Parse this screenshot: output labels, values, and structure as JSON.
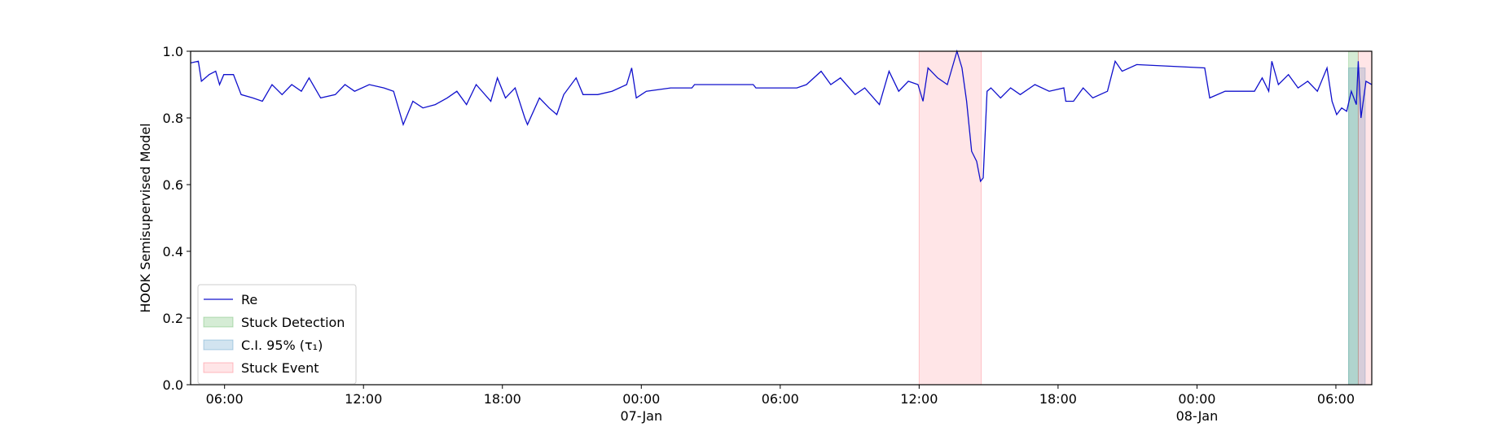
{
  "chart_data": {
    "type": "line",
    "ylabel": "HOOK Semisupervised Model",
    "x": [
      "1900-01-06 04:32",
      "1900-01-06 04:52",
      "1900-01-06 05:00",
      "1900-01-06 05:20",
      "1900-01-06 05:37",
      "1900-01-06 05:47",
      "1900-01-06 05:58",
      "1900-01-06 06:23",
      "1900-01-06 06:43",
      "1900-01-06 07:13",
      "1900-01-06 07:38",
      "1900-01-06 08:03",
      "1900-01-06 08:29",
      "1900-01-06 08:54",
      "1900-01-06 09:19",
      "1900-01-06 09:39",
      "1900-01-06 10:09",
      "1900-01-06 10:47",
      "1900-01-06 11:12",
      "1900-01-06 11:37",
      "1900-01-06 12:15",
      "1900-01-06 12:53",
      "1900-01-06 13:18",
      "1900-01-06 13:43",
      "1900-01-06 14:08",
      "1900-01-06 14:34",
      "1900-01-06 15:06",
      "1900-01-06 15:37",
      "1900-01-06 16:02",
      "1900-01-06 16:27",
      "1900-01-06 16:52",
      "1900-01-06 17:30",
      "1900-01-06 17:47",
      "1900-01-06 18:08",
      "1900-01-06 18:33",
      "1900-01-06 18:58",
      "1900-01-06 19:05",
      "1900-01-06 19:36",
      "1900-01-06 20:01",
      "1900-01-06 20:21",
      "1900-01-06 20:39",
      "1900-01-06 21:11",
      "1900-01-06 21:29",
      "1900-01-06 22:07",
      "1900-01-06 22:44",
      "1900-01-06 23:22",
      "1900-01-06 23:35",
      "1900-01-06 23:47",
      "1900-01-07 00:00",
      "1900-01-07 00:13",
      "1900-01-07 01:16",
      "1900-01-07 02:11",
      "1900-01-07 02:18",
      "1900-01-07 04:50",
      "1900-01-07 04:57",
      "1900-01-07 06:43",
      "1900-01-07 07:08",
      "1900-01-07 07:46",
      "1900-01-07 08:11",
      "1900-01-07 08:36",
      "1900-01-07 09:14",
      "1900-01-07 09:39",
      "1900-01-07 10:17",
      "1900-01-07 10:42",
      "1900-01-07 11:07",
      "1900-01-07 11:32",
      "1900-01-07 11:57",
      "1900-01-07 12:10",
      "1900-01-07 12:23",
      "1900-01-07 12:48",
      "1900-01-07 13:13",
      "1900-01-07 13:38",
      "1900-01-07 13:51",
      "1900-01-07 14:03",
      "1900-01-07 14:16",
      "1900-01-07 14:29",
      "1900-01-07 14:39",
      "1900-01-07 14:46",
      "1900-01-07 14:56",
      "1900-01-07 15:06",
      "1900-01-07 15:31",
      "1900-01-07 15:57",
      "1900-01-07 16:22",
      "1900-01-07 17:00",
      "1900-01-07 17:37",
      "1900-01-07 18:15",
      "1900-01-07 18:20",
      "1900-01-07 18:40",
      "1900-01-07 19:05",
      "1900-01-07 19:30",
      "1900-01-07 20:08",
      "1900-01-07 20:28",
      "1900-01-07 20:46",
      "1900-01-07 21:24",
      "1900-01-08 00:20",
      "1900-01-08 00:33",
      "1900-01-08 01:13",
      "1900-01-08 02:29",
      "1900-01-08 02:49",
      "1900-01-08 03:06",
      "1900-01-08 03:14",
      "1900-01-08 03:31",
      "1900-01-08 03:57",
      "1900-01-08 04:22",
      "1900-01-08 04:47",
      "1900-01-08 05:12",
      "1900-01-08 05:37",
      "1900-01-08 05:50",
      "1900-01-08 06:02",
      "1900-01-08 06:15",
      "1900-01-08 06:28",
      "1900-01-08 06:40",
      "1900-01-08 06:53",
      "1900-01-08 06:58",
      "1900-01-08 07:05",
      "1900-01-08 07:18",
      "1900-01-08 07:33"
    ],
    "series": [
      {
        "name": "Re",
        "color": "#1010cc",
        "values": [
          0.965,
          0.97,
          0.91,
          0.93,
          0.94,
          0.9,
          0.93,
          0.93,
          0.87,
          0.86,
          0.85,
          0.9,
          0.87,
          0.9,
          0.88,
          0.92,
          0.86,
          0.87,
          0.9,
          0.88,
          0.9,
          0.89,
          0.88,
          0.78,
          0.85,
          0.83,
          0.84,
          0.86,
          0.88,
          0.84,
          0.9,
          0.85,
          0.92,
          0.86,
          0.89,
          0.8,
          0.78,
          0.86,
          0.83,
          0.81,
          0.87,
          0.92,
          0.87,
          0.87,
          0.88,
          0.9,
          0.95,
          0.86,
          0.87,
          0.88,
          0.89,
          0.89,
          0.9,
          0.9,
          0.89,
          0.89,
          0.9,
          0.94,
          0.9,
          0.92,
          0.87,
          0.89,
          0.84,
          0.94,
          0.88,
          0.91,
          0.9,
          0.85,
          0.95,
          0.92,
          0.9,
          1.0,
          0.95,
          0.85,
          0.7,
          0.67,
          0.61,
          0.62,
          0.88,
          0.89,
          0.86,
          0.89,
          0.87,
          0.9,
          0.88,
          0.89,
          0.85,
          0.85,
          0.89,
          0.86,
          0.88,
          0.97,
          0.94,
          0.96,
          0.95,
          0.86,
          0.88,
          0.88,
          0.92,
          0.88,
          0.97,
          0.9,
          0.93,
          0.89,
          0.91,
          0.88,
          0.95,
          0.85,
          0.81,
          0.83,
          0.82,
          0.88,
          0.84,
          0.97,
          0.8,
          0.91,
          0.9
        ]
      }
    ],
    "spans": [
      {
        "name": "Stuck Detection",
        "color": "#2ca02c",
        "ranges": [
          [
            "1900-01-08 06:33",
            "1900-01-08 06:58"
          ]
        ]
      },
      {
        "name": "C.I. 95% (τ₁)",
        "color": "#1f77b4",
        "ymax": 0.95,
        "ranges": [
          [
            "1900-01-08 06:33",
            "1900-01-08 07:16"
          ]
        ]
      },
      {
        "name": "Stuck Event",
        "color": "#ff3344",
        "ranges": [
          [
            "1900-01-07 12:00",
            "1900-01-07 14:41"
          ],
          [
            "1900-01-08 06:58",
            "1900-01-08 07:33"
          ]
        ]
      }
    ],
    "xlim": [
      "1900-01-06 04:32",
      "1900-01-08 07:33"
    ],
    "xticks": [
      {
        "value": "1900-01-06 06:00",
        "label": "06:00"
      },
      {
        "value": "1900-01-06 12:00",
        "label": "12:00"
      },
      {
        "value": "1900-01-06 18:00",
        "label": "18:00"
      },
      {
        "value": "1900-01-07 00:00",
        "label": "00:00\n07-Jan\n1900"
      },
      {
        "value": "1900-01-07 06:00",
        "label": "06:00"
      },
      {
        "value": "1900-01-07 12:00",
        "label": "12:00"
      },
      {
        "value": "1900-01-07 18:00",
        "label": "18:00"
      },
      {
        "value": "1900-01-08 00:00",
        "label": "00:00\n08-Jan"
      },
      {
        "value": "1900-01-08 06:00",
        "label": "06:00"
      }
    ],
    "ylim": [
      0,
      1
    ],
    "yticks": [
      {
        "value": 0,
        "label": "0.0"
      },
      {
        "value": 0.2,
        "label": "0.2"
      },
      {
        "value": 0.4,
        "label": "0.4"
      },
      {
        "value": 0.6,
        "label": "0.6"
      },
      {
        "value": 0.8,
        "label": "0.8"
      },
      {
        "value": 1,
        "label": "1.0"
      }
    ],
    "legend": "lower left"
  }
}
